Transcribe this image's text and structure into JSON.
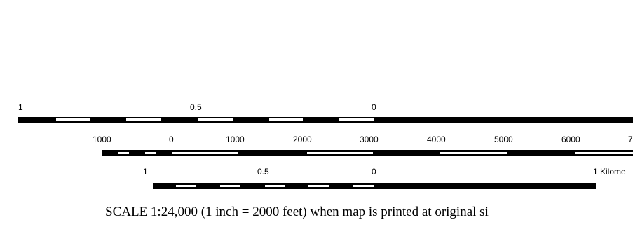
{
  "scalebars": {
    "miles": {
      "labels": [
        "1",
        "0.5",
        "0"
      ],
      "segment_labels": "top"
    },
    "feet": {
      "labels": [
        "1000",
        "0",
        "1000",
        "2000",
        "3000",
        "4000",
        "5000",
        "6000",
        "7"
      ]
    },
    "kilometers": {
      "labels": [
        "1",
        "0.5",
        "0",
        "1 Kilome"
      ]
    }
  },
  "caption": "SCALE 1:24,000 (1 inch = 2000 feet) when map is printed at original si",
  "colors": {
    "bar": "#000000",
    "segment": "#ffffff",
    "background": "#ffffff"
  }
}
